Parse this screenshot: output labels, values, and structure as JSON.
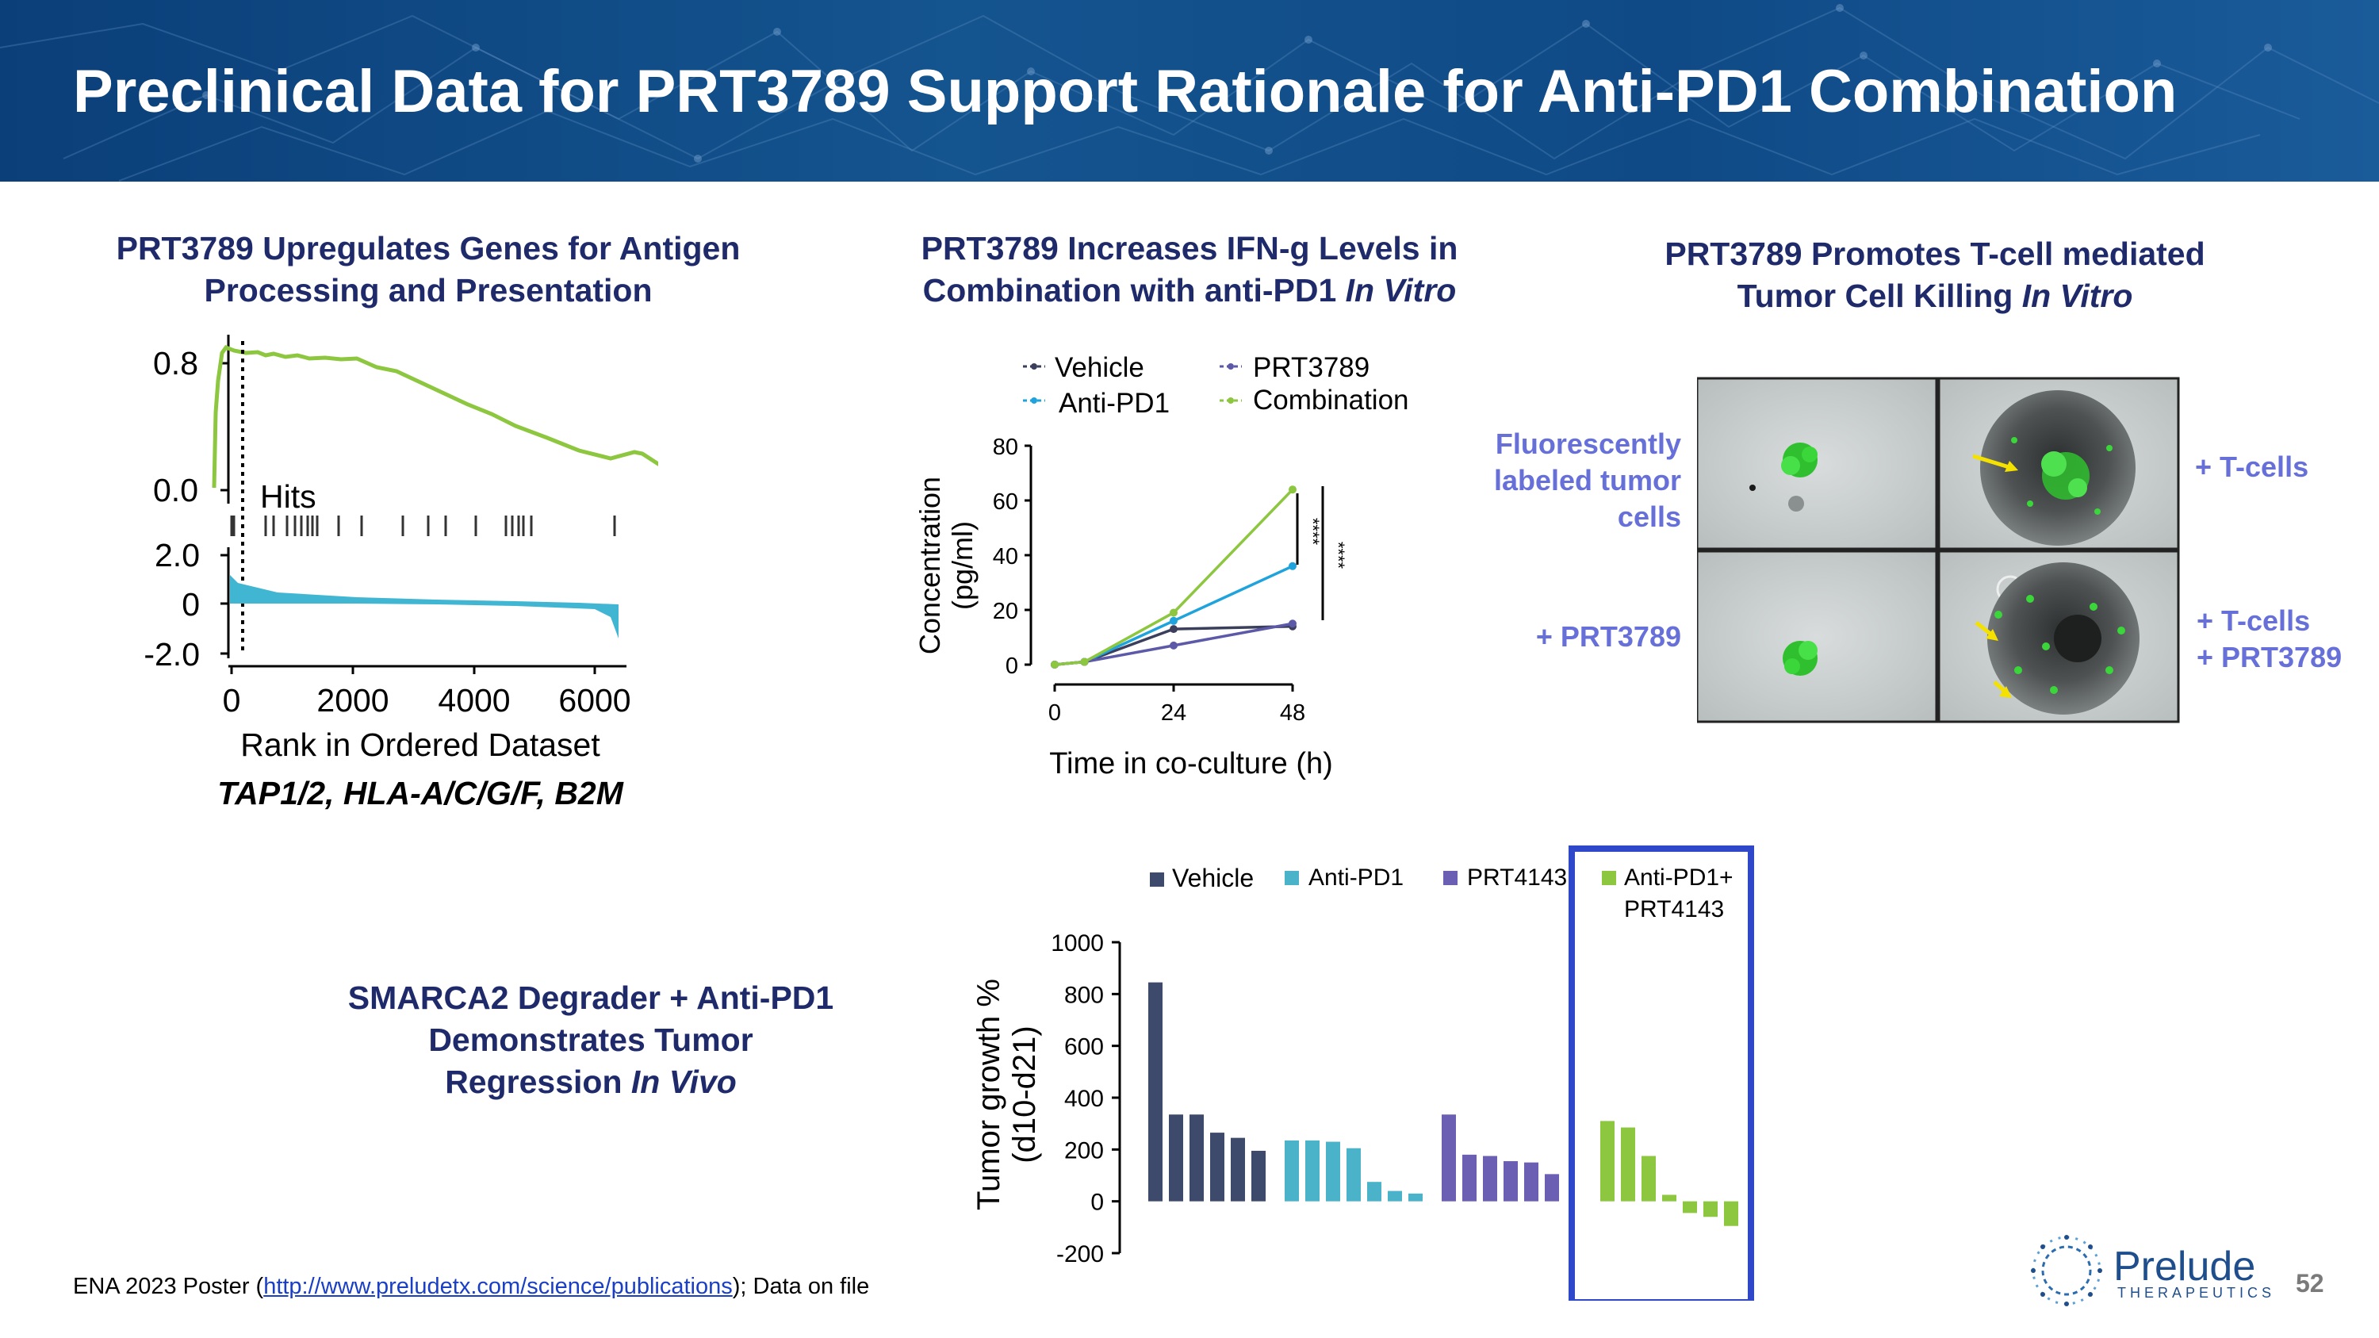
{
  "header": {
    "title": "Preclinical Data for PRT3789 Support Rationale for Anti-PD1 Combination"
  },
  "panel1": {
    "title_line1": "PRT3789 Upregulates Genes for Antigen",
    "title_line2": "Processing and Presentation",
    "y_top_ticks": [
      "0.8",
      "0.0"
    ],
    "hits_label": "Hits",
    "y_bottom_ticks": [
      "2.0",
      "0",
      "-2.0"
    ],
    "x_ticks": [
      "0",
      "2000",
      "4000",
      "6000"
    ],
    "x_label": "Rank in Ordered Dataset",
    "genes": "TAP1/2, HLA-A/C/G/F, B2M",
    "colors": {
      "enrichment": "#8dc63f",
      "metric": "#41b6d2"
    }
  },
  "panel2": {
    "title_line1": "PRT3789 Increases IFN-g Levels in",
    "title_line2_plain": "Combination with anti-PD1 ",
    "title_line2_italic": "In Vitro",
    "ylabel_line1": "Concentration",
    "ylabel_line2": "(pg/ml)",
    "xlabel": "Time in co-culture (h)",
    "significance": "****",
    "chart_data": {
      "type": "line",
      "x": [
        0,
        6,
        24,
        48
      ],
      "x_ticks": [
        "0",
        "24",
        "48"
      ],
      "y_ticks": [
        "0",
        "20",
        "40",
        "60",
        "80"
      ],
      "ylim": [
        0,
        80
      ],
      "series": [
        {
          "name": "Vehicle",
          "color": "#3b3f5c",
          "values": [
            0,
            1,
            13,
            14
          ]
        },
        {
          "name": "Anti-PD1",
          "color": "#1fa3dc",
          "values": [
            0,
            1,
            16,
            36
          ]
        },
        {
          "name": "PRT3789",
          "color": "#5c59a8",
          "values": [
            0,
            1,
            7,
            15
          ]
        },
        {
          "name": "Combination",
          "color": "#8dc63f",
          "values": [
            0,
            1,
            19,
            64
          ]
        }
      ]
    }
  },
  "panel3": {
    "title_line1": "PRT3789 Promotes T-cell mediated",
    "title_line2_plain": "Tumor Cell Killing ",
    "title_line2_italic": "In Vitro",
    "label_tumor_1": "Fluorescently",
    "label_tumor_2": "labeled tumor",
    "label_tumor_3": "cells",
    "label_prt": "+ PRT3789",
    "label_tcells": "+ T-cells",
    "label_tcells_prt_1": "+ T-cells",
    "label_tcells_prt_2": "+ PRT3789"
  },
  "panel4": {
    "title_line1": "SMARCA2 Degrader + Anti-PD1",
    "title_line2": "Demonstrates Tumor",
    "title_line3_plain": "Regression ",
    "title_line3_italic": "In Vivo",
    "ylabel_line1": "Tumor growth %",
    "ylabel_line2": "(d10-d21)",
    "legend_combo_line1": "Anti-PD1+",
    "legend_combo_line2": "PRT4143",
    "chart_data": {
      "type": "bar",
      "y_ticks": [
        "1000",
        "800",
        "600",
        "400",
        "200",
        "0",
        "-200"
      ],
      "ylim": [
        -200,
        1000
      ],
      "series": [
        {
          "name": "Vehicle",
          "color": "#3d4a6b",
          "values": [
            845,
            335,
            335,
            265,
            245,
            195
          ]
        },
        {
          "name": "Anti-PD1",
          "color": "#4ab3c9",
          "values": [
            235,
            235,
            230,
            205,
            75,
            40,
            30
          ]
        },
        {
          "name": "PRT4143",
          "color": "#6a5fb3",
          "values": [
            335,
            180,
            175,
            155,
            150,
            105
          ]
        },
        {
          "name": "Anti-PD1+ PRT4143",
          "color": "#8dc63f",
          "values": [
            310,
            285,
            175,
            25,
            -45,
            -60,
            -95
          ]
        }
      ]
    }
  },
  "footnote": {
    "prefix": "ENA 2023 Poster (",
    "link": "http://www.preludetx.com/science/publications",
    "suffix": "); Data on file"
  },
  "logo": {
    "name": "Prelude",
    "sub": "THERAPEUTICS"
  },
  "page_number": "52"
}
